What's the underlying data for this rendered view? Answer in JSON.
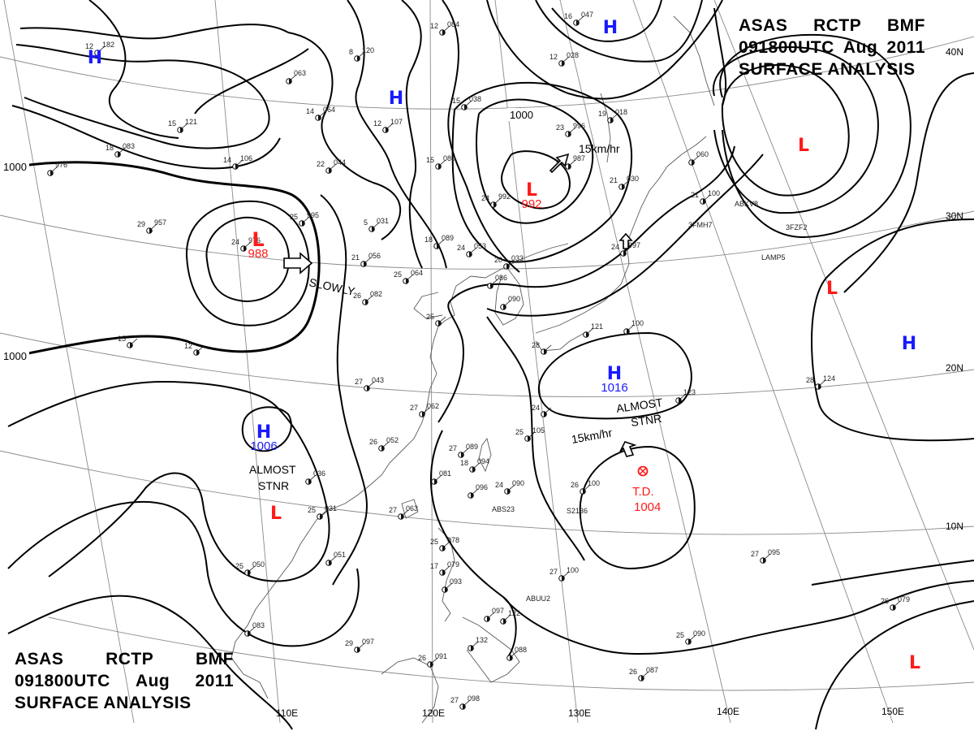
{
  "title": {
    "line1": [
      "ASAS",
      "RCTP",
      "BMF"
    ],
    "line2": [
      "091800UTC",
      "Aug",
      "2011"
    ],
    "line3": "SURFACE  ANALYSIS"
  },
  "colors": {
    "high": "#1a1aff",
    "low": "#ff1a1a",
    "isobar": "#000000",
    "grid": "#777777",
    "coast": "#555555"
  },
  "axes": {
    "longitude_labels": [
      "110E",
      "120E",
      "130E",
      "140E",
      "150E"
    ],
    "latitude_labels": [
      "10N",
      "20N",
      "30N",
      "40N"
    ]
  },
  "isobar_labels": [
    "1000",
    "1000",
    "1000"
  ],
  "centers": [
    {
      "type": "H",
      "id": "h-northwest",
      "pressure": ""
    },
    {
      "type": "H",
      "id": "h-mongolia",
      "pressure": ""
    },
    {
      "type": "H",
      "id": "h-okhotsk",
      "pressure": ""
    },
    {
      "type": "L",
      "id": "l-north-pacific",
      "pressure": ""
    },
    {
      "type": "L",
      "id": "l-north-china",
      "pressure": "992"
    },
    {
      "type": "L",
      "id": "l-west-china",
      "pressure": "988"
    },
    {
      "type": "H",
      "id": "h-south-china",
      "pressure": "1006"
    },
    {
      "type": "L",
      "id": "l-indochina",
      "pressure": ""
    },
    {
      "type": "H",
      "id": "h-east-china-sea",
      "pressure": "1016"
    },
    {
      "type": "L",
      "id": "l-east-pacific",
      "pressure": ""
    },
    {
      "type": "H",
      "id": "h-east-pacific",
      "pressure": ""
    },
    {
      "type": "L",
      "id": "l-southeast-pacific",
      "pressure": ""
    }
  ],
  "tropical_depression": {
    "label": "T.D.",
    "pressure": "1004"
  },
  "motions": [
    {
      "id": "motion-north-low",
      "text": "15km/hr"
    },
    {
      "id": "motion-west-low",
      "text": "SLOWLY"
    },
    {
      "id": "motion-south-high",
      "text": "ALMOST STNR"
    },
    {
      "id": "motion-east-china-high",
      "text": "ALMOST STNR"
    },
    {
      "id": "motion-td",
      "text": "15km/hr"
    }
  ],
  "stations": [
    {
      "t": "12",
      "p": "182"
    },
    {
      "t": "8",
      "p": "120"
    },
    {
      "t": "12",
      "p": "084"
    },
    {
      "t": "16",
      "p": "047"
    },
    {
      "t": "",
      "p": "063"
    },
    {
      "t": "14",
      "p": "064"
    },
    {
      "t": "12",
      "p": "107"
    },
    {
      "t": "15",
      "p": "038"
    },
    {
      "t": "12",
      "p": "028"
    },
    {
      "t": "15",
      "p": "121"
    },
    {
      "t": "18",
      "p": "083"
    },
    {
      "t": "14",
      "p": "106"
    },
    {
      "t": "22",
      "p": "044"
    },
    {
      "t": "15",
      "p": "080"
    },
    {
      "t": "23",
      "p": "996"
    },
    {
      "t": "19",
      "p": "018"
    },
    {
      "t": "",
      "p": "976"
    },
    {
      "t": "29",
      "p": "957"
    },
    {
      "t": "25",
      "p": "995"
    },
    {
      "t": "5",
      "p": "031"
    },
    {
      "t": "24",
      "p": "992"
    },
    {
      "t": "21",
      "p": "987"
    },
    {
      "t": "21",
      "p": "030"
    },
    {
      "t": "",
      "p": "060"
    },
    {
      "t": "21",
      "p": "100"
    },
    {
      "t": "24",
      "p": "976"
    },
    {
      "t": "18",
      "p": "089"
    },
    {
      "t": "24",
      "p": "053"
    },
    {
      "t": "20",
      "p": "033"
    },
    {
      "t": "21",
      "p": "056"
    },
    {
      "t": "25",
      "p": "064"
    },
    {
      "t": "26",
      "p": "082"
    },
    {
      "t": "",
      "p": "086"
    },
    {
      "t": "24",
      "p": "997"
    },
    {
      "t": "",
      "p": "100"
    },
    {
      "t": "15",
      "p": ""
    },
    {
      "t": "12",
      "p": ""
    },
    {
      "t": "25",
      "p": ""
    },
    {
      "t": "",
      "p": "090"
    },
    {
      "t": "28",
      "p": ""
    },
    {
      "t": "27",
      "p": "043"
    },
    {
      "t": "27",
      "p": "062"
    },
    {
      "t": "",
      "p": "121"
    },
    {
      "t": "",
      "p": "123"
    },
    {
      "t": "28",
      "p": "124"
    },
    {
      "t": "24",
      "p": ""
    },
    {
      "t": "26",
      "p": "052"
    },
    {
      "t": "25",
      "p": "105"
    },
    {
      "t": "27",
      "p": "089"
    },
    {
      "t": "18",
      "p": "094"
    },
    {
      "t": "24",
      "p": "090"
    },
    {
      "t": "26",
      "p": "100"
    },
    {
      "t": "",
      "p": "036"
    },
    {
      "t": "",
      "p": "081"
    },
    {
      "t": "",
      "p": "096"
    },
    {
      "t": "25",
      "p": "031"
    },
    {
      "t": "27",
      "p": "063"
    },
    {
      "t": "25",
      "p": "078"
    },
    {
      "t": "",
      "p": "051"
    },
    {
      "t": "25",
      "p": "050"
    },
    {
      "t": "17",
      "p": "079"
    },
    {
      "t": "27",
      "p": "100"
    },
    {
      "t": "27",
      "p": "095"
    },
    {
      "t": "",
      "p": "093"
    },
    {
      "t": "",
      "p": "097"
    },
    {
      "t": "",
      "p": "083"
    },
    {
      "t": "29",
      "p": "097"
    },
    {
      "t": "26",
      "p": "091"
    },
    {
      "t": "",
      "p": "132"
    },
    {
      "t": "",
      "p": "088"
    },
    {
      "t": "25",
      "p": "090"
    },
    {
      "t": "26",
      "p": "087"
    },
    {
      "t": "26",
      "p": "079"
    },
    {
      "t": "27",
      "p": "098"
    },
    {
      "t": "",
      "p": "122"
    }
  ],
  "station_ids": [
    "ABKV8",
    "3FMH7",
    "3FZF2",
    "LAMP5",
    "ABS23",
    "S2136",
    "ABUU2"
  ]
}
